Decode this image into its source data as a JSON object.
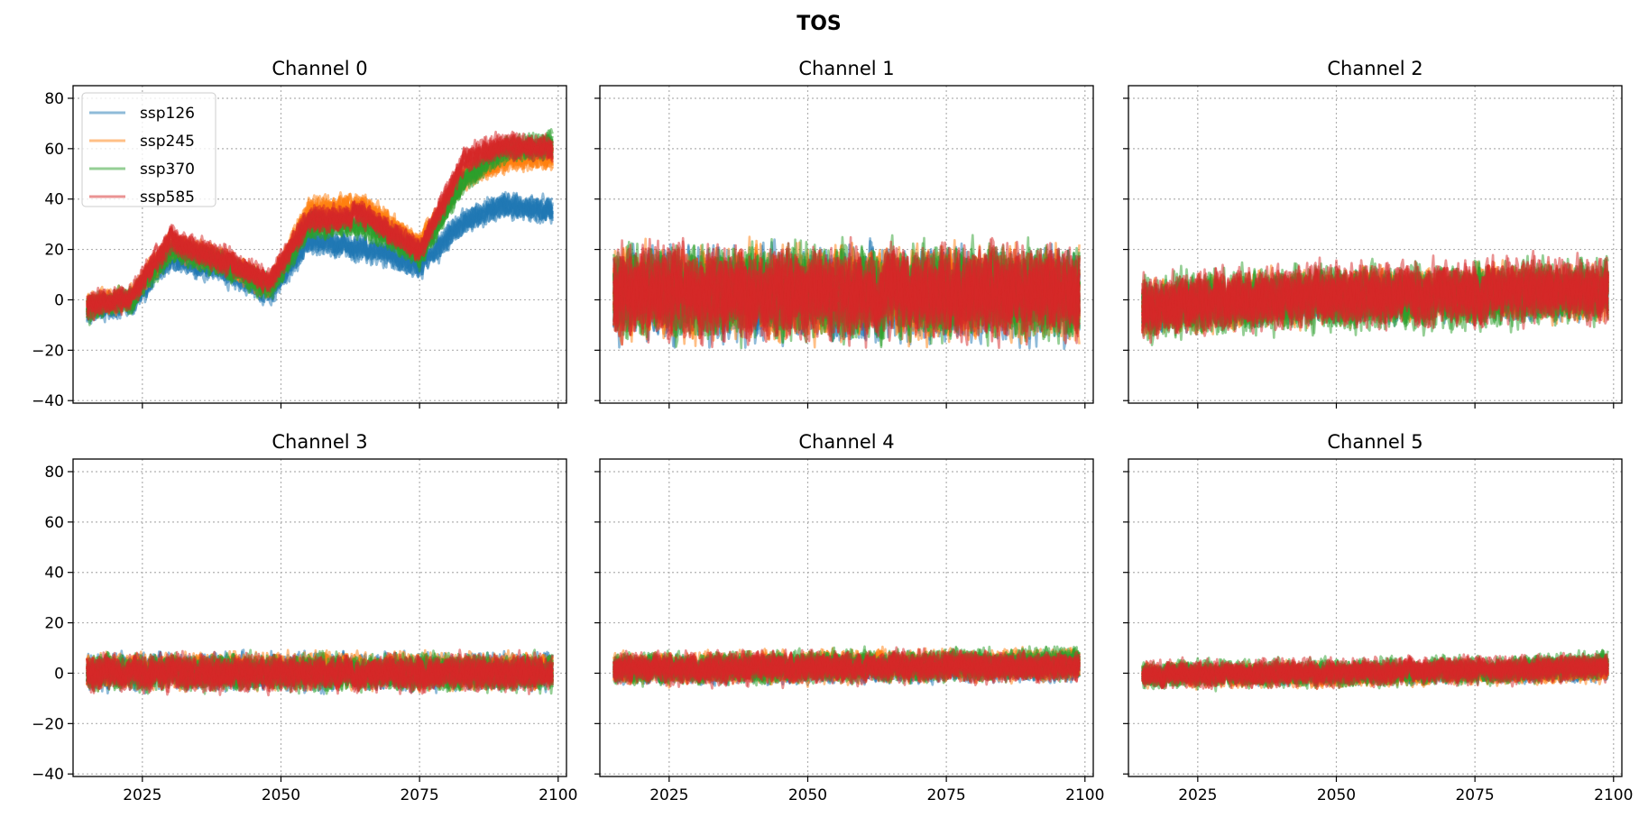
{
  "figure": {
    "title": "TOS"
  },
  "colors": {
    "ssp126": "#1f77b4",
    "ssp245": "#ff7f0e",
    "ssp370": "#2ca02c",
    "ssp585": "#d62728"
  },
  "chart_data": [
    {
      "type": "line",
      "title": "Channel 0",
      "xlabel": "",
      "ylabel": "",
      "xlim": [
        2012.5,
        2101.5
      ],
      "ylim": [
        -41,
        85
      ],
      "xticks": [
        2025,
        2050,
        2075,
        2100
      ],
      "yticks": [
        -40,
        -20,
        0,
        20,
        40,
        60,
        80
      ],
      "grid": true,
      "legend": {
        "placement": "upper-left",
        "entries": [
          "ssp126",
          "ssp245",
          "ssp370",
          "ssp585"
        ]
      },
      "series": [
        {
          "name": "ssp126",
          "x": [
            2015,
            2023,
            2030,
            2040,
            2048,
            2055,
            2065,
            2075,
            2083,
            2090,
            2099
          ],
          "values": [
            -4,
            0,
            18,
            12,
            4,
            24,
            22,
            14,
            32,
            38,
            36
          ]
        },
        {
          "name": "ssp245",
          "x": [
            2015,
            2023,
            2030,
            2040,
            2048,
            2055,
            2065,
            2075,
            2083,
            2090,
            2099
          ],
          "values": [
            -2,
            2,
            22,
            16,
            6,
            36,
            38,
            22,
            50,
            56,
            58
          ]
        },
        {
          "name": "ssp370",
          "x": [
            2015,
            2023,
            2030,
            2040,
            2048,
            2055,
            2065,
            2075,
            2083,
            2090,
            2099
          ],
          "values": [
            -3,
            1,
            20,
            14,
            5,
            30,
            30,
            18,
            48,
            60,
            62
          ]
        },
        {
          "name": "ssp585",
          "x": [
            2015,
            2023,
            2030,
            2040,
            2048,
            2055,
            2065,
            2075,
            2083,
            2090,
            2099
          ],
          "values": [
            -2,
            2,
            24,
            16,
            8,
            32,
            34,
            20,
            56,
            62,
            60
          ]
        }
      ]
    },
    {
      "type": "line",
      "title": "Channel 1",
      "xlabel": "",
      "ylabel": "",
      "xlim": [
        2012.5,
        2101.5
      ],
      "ylim": [
        -41,
        85
      ],
      "xticks": [
        2025,
        2050,
        2075,
        2100
      ],
      "yticks": [
        -40,
        -20,
        0,
        20,
        40,
        60,
        80
      ],
      "grid": true,
      "series": [
        {
          "name": "ssp126",
          "x": [
            2015,
            2099
          ],
          "values": [
            0,
            0
          ],
          "amplitude": 20
        },
        {
          "name": "ssp245",
          "x": [
            2015,
            2099
          ],
          "values": [
            0,
            0
          ],
          "amplitude": 20
        },
        {
          "name": "ssp370",
          "x": [
            2015,
            2099
          ],
          "values": [
            0,
            0
          ],
          "amplitude": 20
        },
        {
          "name": "ssp585",
          "x": [
            2015,
            2099
          ],
          "values": [
            0,
            0
          ],
          "amplitude": 20
        }
      ]
    },
    {
      "type": "line",
      "title": "Channel 2",
      "xlabel": "",
      "ylabel": "",
      "xlim": [
        2012.5,
        2101.5
      ],
      "ylim": [
        -41,
        85
      ],
      "xticks": [
        2025,
        2050,
        2075,
        2100
      ],
      "yticks": [
        -40,
        -20,
        0,
        20,
        40,
        60,
        80
      ],
      "grid": true,
      "series": [
        {
          "name": "ssp126",
          "x": [
            2015,
            2025,
            2040,
            2055,
            2070,
            2085,
            2099
          ],
          "values": [
            -1,
            1,
            2,
            3,
            3,
            4,
            4
          ],
          "amplitude": 10
        },
        {
          "name": "ssp245",
          "x": [
            2015,
            2025,
            2040,
            2055,
            2070,
            2085,
            2099
          ],
          "values": [
            -1,
            2,
            3,
            5,
            4,
            6,
            6
          ],
          "amplitude": 12
        },
        {
          "name": "ssp370",
          "x": [
            2015,
            2025,
            2040,
            2055,
            2070,
            2085,
            2099
          ],
          "values": [
            -1,
            2,
            3,
            4,
            4,
            6,
            7
          ],
          "amplitude": 14
        },
        {
          "name": "ssp585",
          "x": [
            2015,
            2025,
            2040,
            2055,
            2070,
            2085,
            2099
          ],
          "values": [
            -1,
            3,
            4,
            5,
            5,
            7,
            7
          ],
          "amplitude": 14
        }
      ]
    },
    {
      "type": "line",
      "title": "Channel 3",
      "xlabel": "",
      "ylabel": "",
      "xlim": [
        2012.5,
        2101.5
      ],
      "ylim": [
        -41,
        85
      ],
      "xticks": [
        2025,
        2050,
        2075,
        2100
      ],
      "yticks": [
        -40,
        -20,
        0,
        20,
        40,
        60,
        80
      ],
      "grid": true,
      "series": [
        {
          "name": "ssp126",
          "x": [
            2015,
            2099
          ],
          "values": [
            1,
            1
          ],
          "amplitude": 8
        },
        {
          "name": "ssp245",
          "x": [
            2015,
            2099
          ],
          "values": [
            1,
            1
          ],
          "amplitude": 8
        },
        {
          "name": "ssp370",
          "x": [
            2015,
            2099
          ],
          "values": [
            0,
            0
          ],
          "amplitude": 8
        },
        {
          "name": "ssp585",
          "x": [
            2015,
            2099
          ],
          "values": [
            0,
            0
          ],
          "amplitude": 8
        }
      ]
    },
    {
      "type": "line",
      "title": "Channel 4",
      "xlabel": "",
      "ylabel": "",
      "xlim": [
        2012.5,
        2101.5
      ],
      "ylim": [
        -41,
        85
      ],
      "xticks": [
        2025,
        2050,
        2075,
        2100
      ],
      "yticks": [
        -40,
        -20,
        0,
        20,
        40,
        60,
        80
      ],
      "grid": true,
      "series": [
        {
          "name": "ssp126",
          "x": [
            2015,
            2099
          ],
          "values": [
            0,
            1
          ],
          "amplitude": 6
        },
        {
          "name": "ssp245",
          "x": [
            2015,
            2099
          ],
          "values": [
            0,
            2
          ],
          "amplitude": 7
        },
        {
          "name": "ssp370",
          "x": [
            2015,
            2099
          ],
          "values": [
            0,
            2
          ],
          "amplitude": 7
        },
        {
          "name": "ssp585",
          "x": [
            2015,
            2099
          ],
          "values": [
            0,
            1
          ],
          "amplitude": 7
        }
      ]
    },
    {
      "type": "line",
      "title": "Channel 5",
      "xlabel": "",
      "ylabel": "",
      "xlim": [
        2012.5,
        2101.5
      ],
      "ylim": [
        -41,
        85
      ],
      "xticks": [
        2025,
        2050,
        2075,
        2100
      ],
      "yticks": [
        -40,
        -20,
        0,
        20,
        40,
        60,
        80
      ],
      "grid": true,
      "series": [
        {
          "name": "ssp126",
          "x": [
            2015,
            2050,
            2080,
            2099
          ],
          "values": [
            0,
            0,
            1,
            1
          ],
          "amplitude": 4
        },
        {
          "name": "ssp245",
          "x": [
            2015,
            2050,
            2080,
            2099
          ],
          "values": [
            0,
            0,
            1,
            2
          ],
          "amplitude": 5
        },
        {
          "name": "ssp370",
          "x": [
            2015,
            2050,
            2080,
            2099
          ],
          "values": [
            0,
            1,
            2,
            4
          ],
          "amplitude": 6
        },
        {
          "name": "ssp585",
          "x": [
            2015,
            2050,
            2080,
            2099
          ],
          "values": [
            0,
            1,
            2,
            3
          ],
          "amplitude": 6
        }
      ]
    }
  ]
}
